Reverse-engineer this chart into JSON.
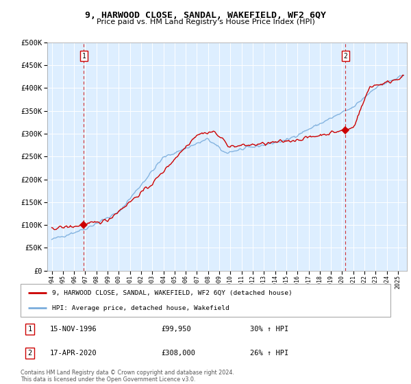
{
  "title": "9, HARWOOD CLOSE, SANDAL, WAKEFIELD, WF2 6QY",
  "subtitle": "Price paid vs. HM Land Registry's House Price Index (HPI)",
  "legend_label_red": "9, HARWOOD CLOSE, SANDAL, WAKEFIELD, WF2 6QY (detached house)",
  "legend_label_blue": "HPI: Average price, detached house, Wakefield",
  "transaction1_date": "15-NOV-1996",
  "transaction1_price": 99950,
  "transaction1_hpi": "30% ↑ HPI",
  "transaction2_date": "17-APR-2020",
  "transaction2_price": 308000,
  "transaction2_hpi": "26% ↑ HPI",
  "footer": "Contains HM Land Registry data © Crown copyright and database right 2024.\nThis data is licensed under the Open Government Licence v3.0.",
  "ylim": [
    0,
    500000
  ],
  "yticks": [
    0,
    50000,
    100000,
    150000,
    200000,
    250000,
    300000,
    350000,
    400000,
    450000,
    500000
  ],
  "red_color": "#cc0000",
  "blue_color": "#7aaddc",
  "bg_color": "#ddeeff",
  "hatch_color": "#c8d8e8",
  "grid_color": "#ffffff",
  "vline_color": "#cc0000",
  "marker_color": "#cc0000",
  "transaction1_x": 1996.88,
  "transaction2_x": 2020.29
}
